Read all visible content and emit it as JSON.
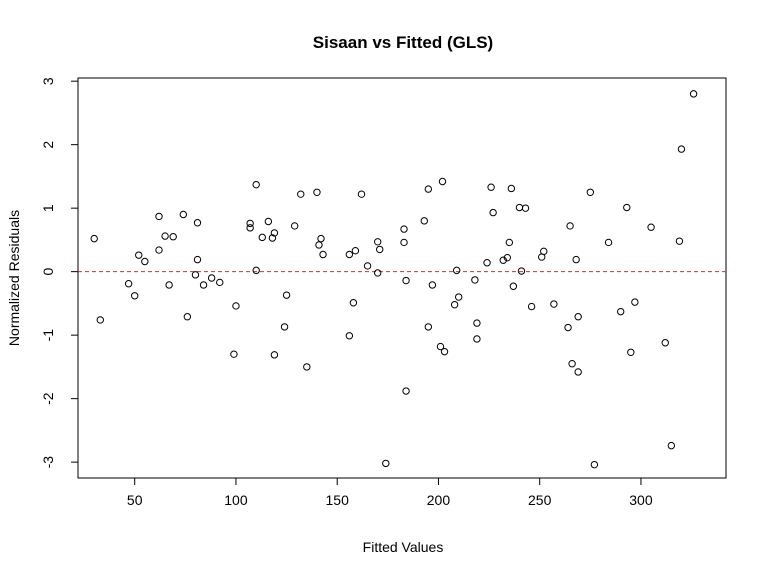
{
  "chart_data": {
    "type": "scatter",
    "title": "Sisaan vs Fitted (GLS)",
    "xlabel": "Fitted Values",
    "ylabel": "Normalized Residuals",
    "xlim": [
      22,
      342
    ],
    "ylim": [
      -3.25,
      3.05
    ],
    "xticks": [
      50,
      100,
      150,
      200,
      250,
      300
    ],
    "yticks": [
      -3,
      -2,
      -1,
      0,
      1,
      2,
      3
    ],
    "reference_line": {
      "y": 0,
      "color": "#cc3333",
      "style": "dashed"
    },
    "grid": false,
    "legend": "none",
    "points": [
      [
        30,
        0.52
      ],
      [
        33,
        -0.76
      ],
      [
        47,
        -0.19
      ],
      [
        50,
        -0.38
      ],
      [
        52,
        0.26
      ],
      [
        55,
        0.16
      ],
      [
        62,
        0.87
      ],
      [
        62,
        0.34
      ],
      [
        65,
        0.56
      ],
      [
        67,
        -0.21
      ],
      [
        69,
        0.55
      ],
      [
        74,
        0.9
      ],
      [
        76,
        -0.71
      ],
      [
        80,
        -0.05
      ],
      [
        81,
        0.19
      ],
      [
        81,
        0.77
      ],
      [
        84,
        -0.21
      ],
      [
        88,
        -0.1
      ],
      [
        92,
        -0.17
      ],
      [
        99,
        -1.3
      ],
      [
        100,
        -0.54
      ],
      [
        107,
        0.76
      ],
      [
        107,
        0.69
      ],
      [
        110,
        1.37
      ],
      [
        110,
        0.02
      ],
      [
        113,
        0.54
      ],
      [
        116,
        0.79
      ],
      [
        118,
        0.53
      ],
      [
        119,
        0.61
      ],
      [
        119,
        -1.31
      ],
      [
        124,
        -0.87
      ],
      [
        125,
        -0.37
      ],
      [
        129,
        0.72
      ],
      [
        132,
        1.22
      ],
      [
        135,
        -1.5
      ],
      [
        140,
        1.25
      ],
      [
        141,
        0.42
      ],
      [
        142,
        0.52
      ],
      [
        143,
        0.27
      ],
      [
        156,
        -1.01
      ],
      [
        156,
        0.27
      ],
      [
        158,
        -0.49
      ],
      [
        159,
        0.33
      ],
      [
        162,
        1.22
      ],
      [
        165,
        0.09
      ],
      [
        170,
        -0.02
      ],
      [
        170,
        0.47
      ],
      [
        171,
        0.35
      ],
      [
        174,
        -3.02
      ],
      [
        183,
        0.67
      ],
      [
        183,
        0.46
      ],
      [
        184,
        -0.14
      ],
      [
        184,
        -1.88
      ],
      [
        193,
        0.8
      ],
      [
        195,
        1.3
      ],
      [
        195,
        -0.87
      ],
      [
        197,
        -0.21
      ],
      [
        201,
        -1.18
      ],
      [
        202,
        1.42
      ],
      [
        203,
        -1.26
      ],
      [
        208,
        -0.52
      ],
      [
        209,
        0.02
      ],
      [
        210,
        -0.4
      ],
      [
        218,
        -0.13
      ],
      [
        219,
        -0.81
      ],
      [
        219,
        -1.06
      ],
      [
        224,
        0.14
      ],
      [
        226,
        1.33
      ],
      [
        227,
        0.93
      ],
      [
        232,
        0.18
      ],
      [
        234,
        0.22
      ],
      [
        235,
        0.46
      ],
      [
        236,
        1.31
      ],
      [
        237,
        -0.23
      ],
      [
        240,
        1.01
      ],
      [
        241,
        0.01
      ],
      [
        243,
        1.0
      ],
      [
        246,
        -0.55
      ],
      [
        251,
        0.23
      ],
      [
        252,
        0.32
      ],
      [
        257,
        -0.51
      ],
      [
        264,
        -0.88
      ],
      [
        265,
        0.72
      ],
      [
        266,
        -1.45
      ],
      [
        268,
        0.19
      ],
      [
        269,
        -1.58
      ],
      [
        269,
        -0.71
      ],
      [
        275,
        1.25
      ],
      [
        277,
        -3.04
      ],
      [
        284,
        0.46
      ],
      [
        290,
        -0.63
      ],
      [
        293,
        1.01
      ],
      [
        295,
        -1.27
      ],
      [
        297,
        -0.48
      ],
      [
        305,
        0.7
      ],
      [
        312,
        -1.12
      ],
      [
        315,
        -2.74
      ],
      [
        319,
        0.48
      ],
      [
        320,
        1.93
      ],
      [
        326,
        2.8
      ]
    ]
  }
}
